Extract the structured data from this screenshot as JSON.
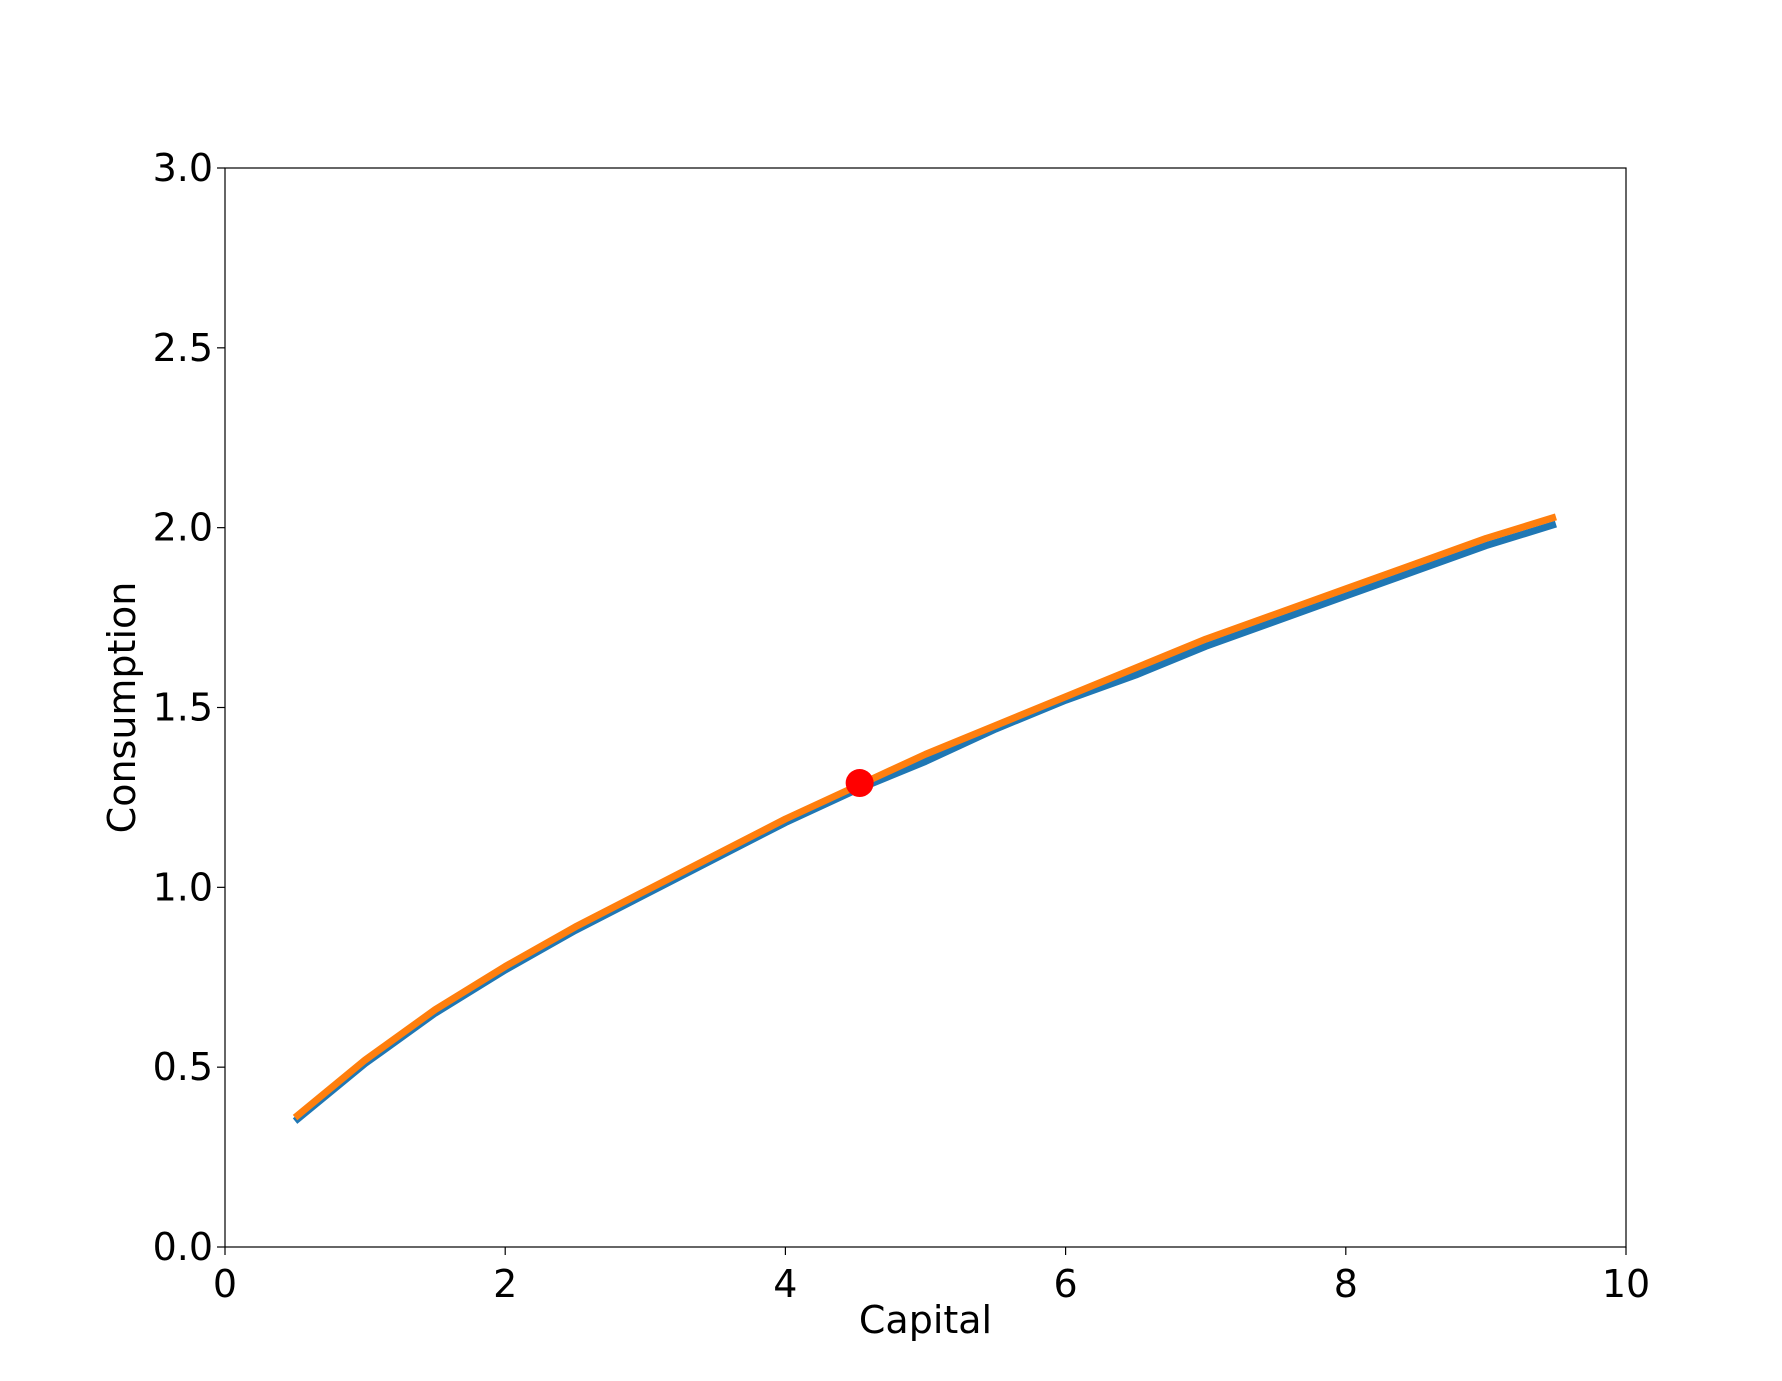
{
  "chart_data": {
    "type": "line",
    "title": "",
    "xlabel": "Capital",
    "ylabel": "Consumption",
    "xlim": [
      0,
      10
    ],
    "ylim": [
      0,
      3.0
    ],
    "xticks": [
      "0",
      "2",
      "4",
      "6",
      "8",
      "10"
    ],
    "yticks": [
      "0.0",
      "0.5",
      "1.0",
      "1.5",
      "2.0",
      "2.5",
      "3.0"
    ],
    "grid": false,
    "legend": "none",
    "series": [
      {
        "color": "#1f77b4",
        "x": [
          0.5,
          1.0,
          1.5,
          2.0,
          2.5,
          3.0,
          3.5,
          4.0,
          4.5,
          5.0,
          5.5,
          6.0,
          6.5,
          7.0,
          7.5,
          8.0,
          8.5,
          9.0,
          9.5
        ],
        "y": [
          0.35,
          0.51,
          0.65,
          0.77,
          0.88,
          0.98,
          1.08,
          1.18,
          1.27,
          1.35,
          1.44,
          1.52,
          1.59,
          1.67,
          1.74,
          1.81,
          1.88,
          1.95,
          2.01
        ]
      },
      {
        "color": "#ff7f0e",
        "x": [
          0.5,
          1.0,
          1.5,
          2.0,
          2.5,
          3.0,
          3.5,
          4.0,
          4.5,
          5.0,
          5.5,
          6.0,
          6.5,
          7.0,
          7.5,
          8.0,
          8.5,
          9.0,
          9.5
        ],
        "y": [
          0.36,
          0.52,
          0.66,
          0.78,
          0.89,
          0.99,
          1.09,
          1.19,
          1.28,
          1.37,
          1.45,
          1.53,
          1.61,
          1.69,
          1.76,
          1.83,
          1.9,
          1.97,
          2.03
        ]
      }
    ],
    "points": [
      {
        "x": 4.53,
        "y": 1.29,
        "color": "#ff0000"
      }
    ]
  }
}
